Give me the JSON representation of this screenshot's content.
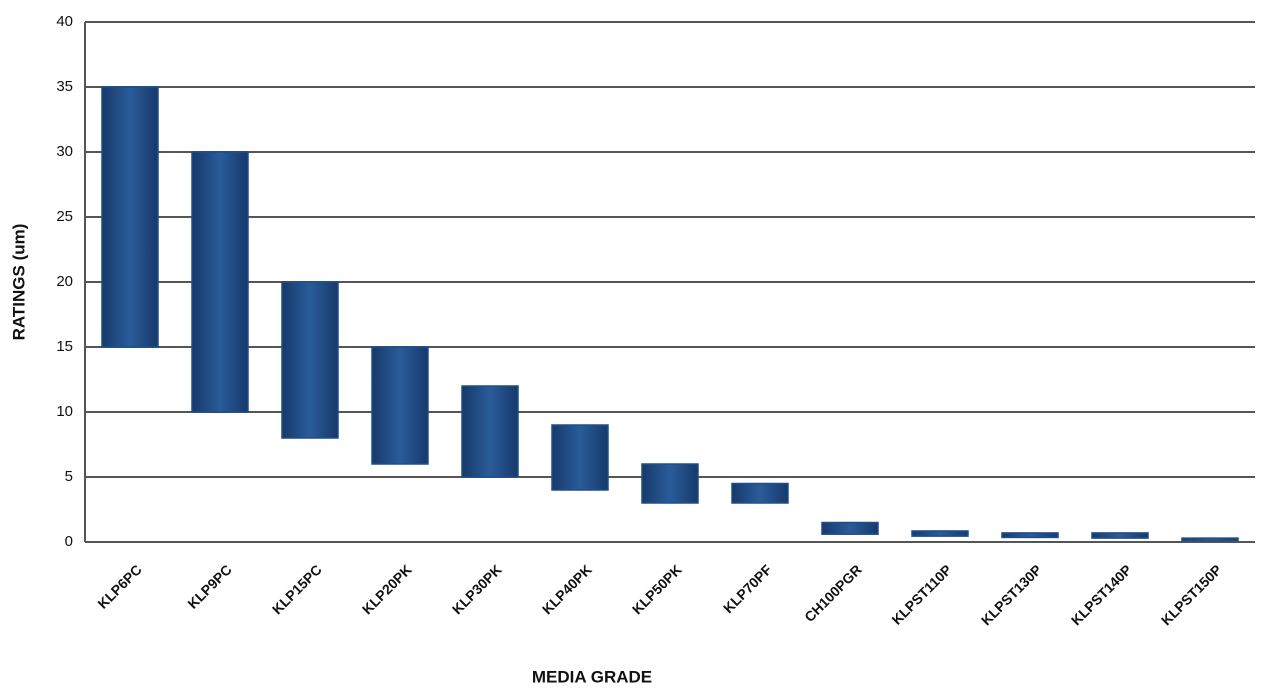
{
  "chart_data": {
    "type": "floating_bar",
    "x_label": "MEDIA GRADE",
    "y_label": "RATINGS (um)",
    "categories": [
      "KLP6PC",
      "KLP9PC",
      "KLP15PC",
      "KLP20PK",
      "KLP30PK",
      "KLP40PK",
      "KLP50PK",
      "KLP70PF",
      "CH100PGR",
      "KLPST110P",
      "KLPST130P",
      "KLPST140P",
      "KLPST150P"
    ],
    "low": [
      15,
      10,
      8,
      6,
      5,
      4,
      3,
      3,
      0.6,
      0.45,
      0.35,
      0.3,
      0.1
    ],
    "high": [
      35,
      30,
      20,
      15,
      12,
      9,
      6,
      4.5,
      1.5,
      0.85,
      0.7,
      0.7,
      0.3
    ],
    "color": "#1f4e8a",
    "ylim": [
      0,
      40
    ],
    "yticks": [
      0,
      5,
      10,
      15,
      20,
      25,
      30,
      35,
      40
    ],
    "grid": true
  }
}
